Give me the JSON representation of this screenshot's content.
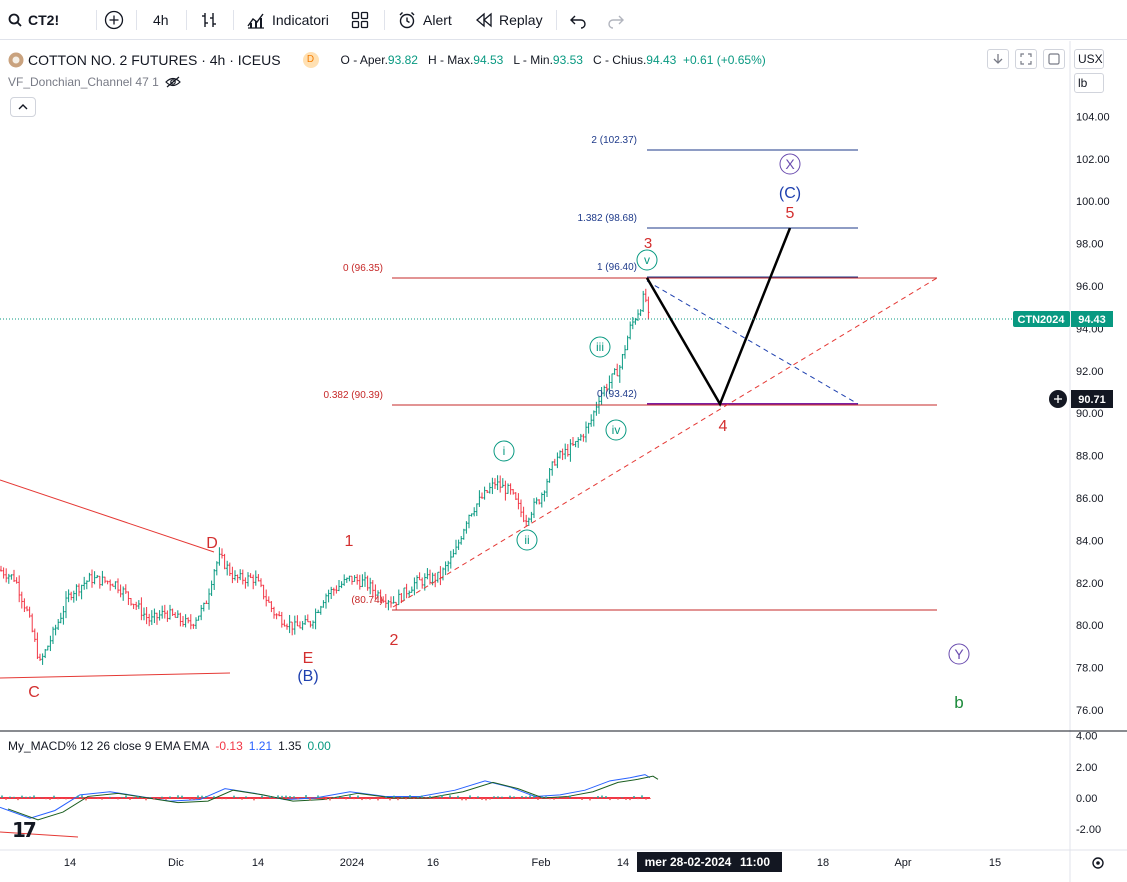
{
  "toolbar": {
    "symbol": "CT2!",
    "interval": "4h",
    "indicators": "Indicatori",
    "alert": "Alert",
    "replay": "Replay"
  },
  "legend": {
    "title": "COTTON NO. 2 FUTURES · 4h · ICEUS",
    "badge": "D",
    "open_label": "O - Aper.",
    "open": "93.82",
    "high_label": "H - Max.",
    "high": "94.53",
    "low_label": "L - Min.",
    "low": "93.53",
    "close_label": "C - Chius.",
    "close": "94.43",
    "change": "+0.61",
    "change_pct": "(+0.65%)",
    "indicator": "VF_Donchian_Channel 47 1"
  },
  "price_axis": {
    "currency": "USX",
    "unit": "lb",
    "ticks": [
      "104.00",
      "102.00",
      "100.00",
      "98.00",
      "96.00",
      "94.00",
      "92.00",
      "90.00",
      "88.00",
      "86.00",
      "84.00",
      "82.00",
      "80.00",
      "78.00",
      "76.00"
    ],
    "symbol_tag": "CTN2024",
    "last_price": "94.43",
    "crosshair_price": "90.71"
  },
  "macd": {
    "label": "My_MACD% 12 26 close 9 EMA EMA",
    "v1": "-0.13",
    "v2": "1.21",
    "v3": "1.35",
    "v4": "0.00",
    "ticks": [
      "4.00",
      "2.00",
      "0.00",
      "-2.00"
    ]
  },
  "time_axis": {
    "ticks": [
      "14",
      "Dic",
      "14",
      "2024",
      "16",
      "Feb",
      "14",
      "18",
      "Apr",
      "15"
    ],
    "crosshair_date": "mer 28-02-2024",
    "crosshair_time": "11:00"
  },
  "fib_labels": {
    "f2": "2 (102.37)",
    "f1382": "1.382 (98.68)",
    "f1": "1 (96.40)",
    "f0b": "0 (93.42)",
    "r0": "0 (96.35)",
    "r0382": "0.382 (90.39)",
    "r_low": "(80.74)"
  },
  "wave_labels": {
    "X": "X",
    "C_paren": "(C)",
    "five": "5",
    "three": "3",
    "v": "v",
    "iii": "iii",
    "iv": "iv",
    "i": "i",
    "ii": "ii",
    "four": "4",
    "D": "D",
    "one": "1",
    "two": "2",
    "E": "E",
    "B_paren": "(B)",
    "C": "C",
    "Y": "Y",
    "b": "b"
  },
  "colors": {
    "up": "#089981",
    "down": "#f23645",
    "fib_blue": "#1e3a8a",
    "fib_red": "#d32f2f",
    "accent": "#2962ff",
    "green_wave": "#1b8a3a",
    "purple_wave": "#6a4caf"
  }
}
